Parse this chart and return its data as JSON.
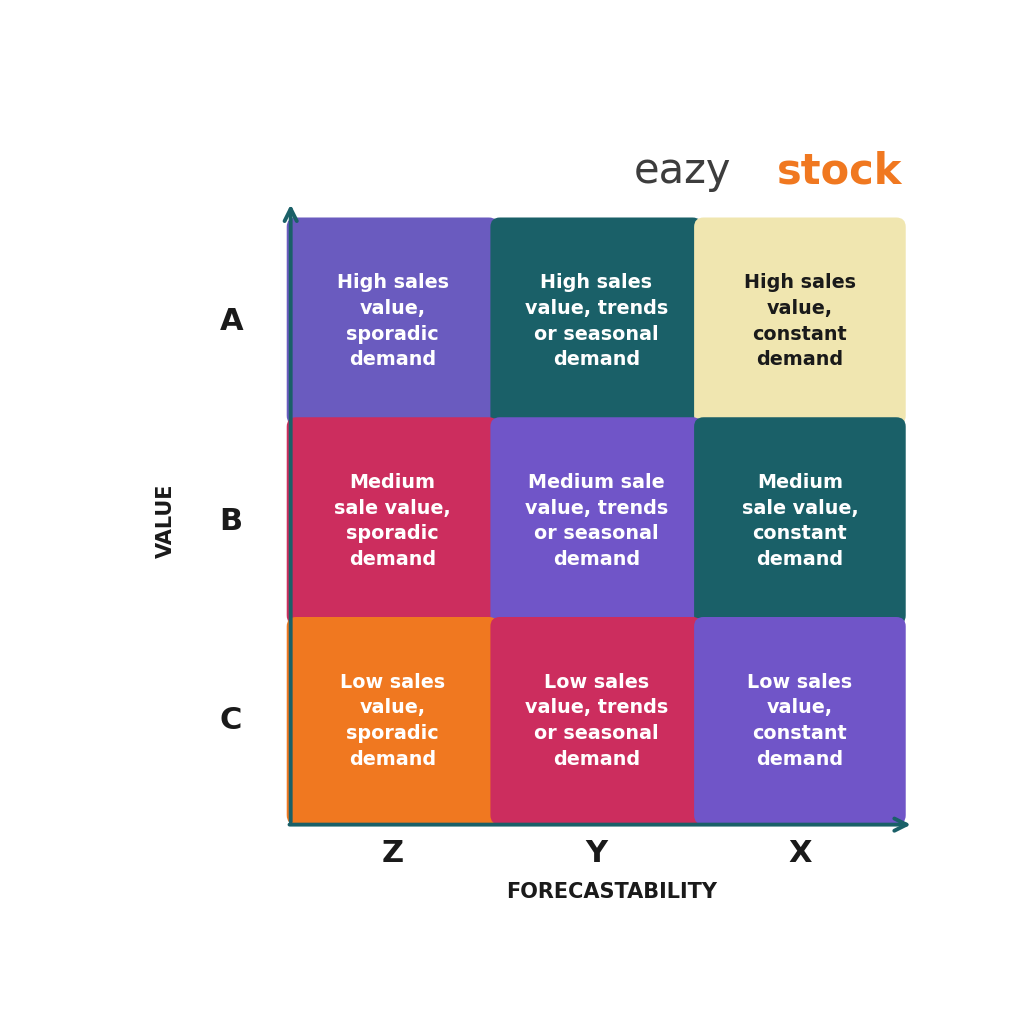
{
  "background_color": "#ffffff",
  "axis_color": "#1a6068",
  "grid": [
    [
      {
        "label": "High sales\nvalue,\nsporadic\ndemand",
        "color": "#6a5bbf",
        "text_color": "#ffffff"
      },
      {
        "label": "High sales\nvalue, trends\nor seasonal\ndemand",
        "color": "#1a6068",
        "text_color": "#ffffff"
      },
      {
        "label": "High sales\nvalue,\nconstant\ndemand",
        "color": "#f0e6b0",
        "text_color": "#1a1a1a"
      }
    ],
    [
      {
        "label": "Medium\nsale value,\nsporadic\ndemand",
        "color": "#cc2d5e",
        "text_color": "#ffffff"
      },
      {
        "label": "Medium sale\nvalue, trends\nor seasonal\ndemand",
        "color": "#7055c8",
        "text_color": "#ffffff"
      },
      {
        "label": "Medium\nsale value,\nconstant\ndemand",
        "color": "#1a6068",
        "text_color": "#ffffff"
      }
    ],
    [
      {
        "label": "Low sales\nvalue,\nsporadic\ndemand",
        "color": "#f07820",
        "text_color": "#ffffff"
      },
      {
        "label": "Low sales\nvalue, trends\nor seasonal\ndemand",
        "color": "#cc2d5e",
        "text_color": "#ffffff"
      },
      {
        "label": "Low sales\nvalue,\nconstant\ndemand",
        "color": "#7055c8",
        "text_color": "#ffffff"
      }
    ]
  ],
  "row_labels": [
    "A",
    "B",
    "C"
  ],
  "col_labels": [
    "Z",
    "Y",
    "X"
  ],
  "xlabel": "FORECASTABILITY",
  "ylabel": "VALUE",
  "logo_eazy_color": "#3d3d3d",
  "logo_stock_color": "#f07820"
}
